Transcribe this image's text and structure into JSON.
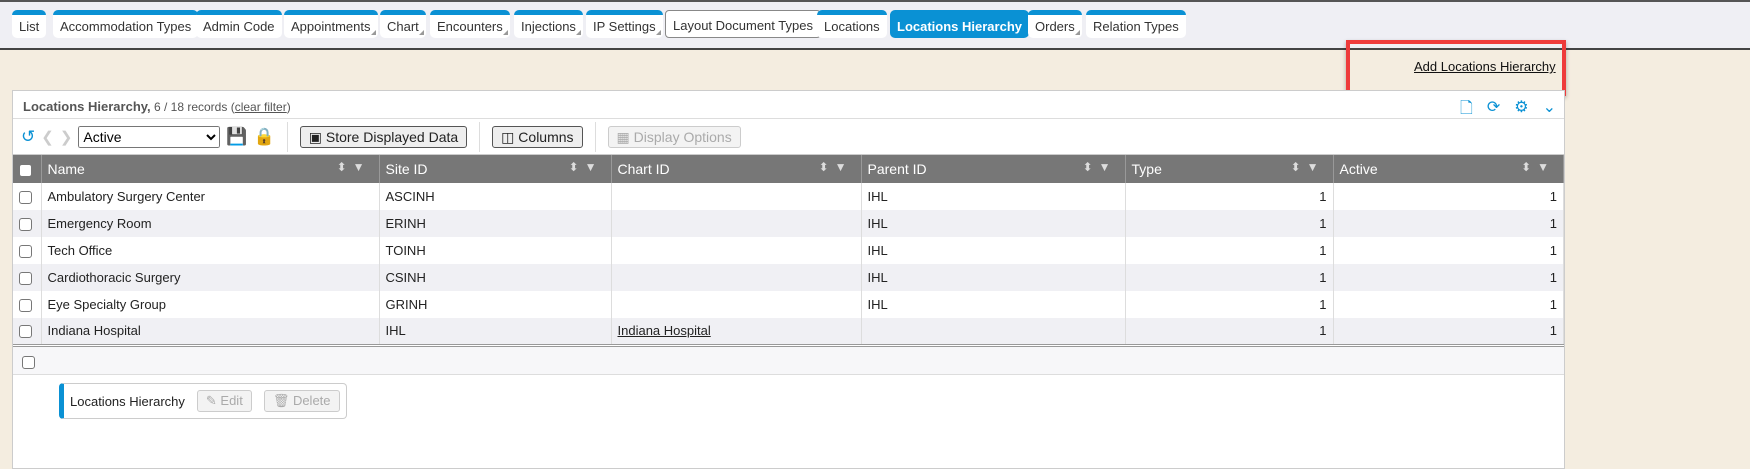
{
  "tabs": [
    {
      "label": "List",
      "left": 12,
      "sub": false
    },
    {
      "label": "Accommodation Types",
      "sub": false
    },
    {
      "label": "Admin Code",
      "sub": false
    },
    {
      "label": "Appointments",
      "sub": true
    },
    {
      "label": "Chart",
      "sub": true
    },
    {
      "label": "Encounters",
      "sub": true
    },
    {
      "label": "Injections",
      "sub": true
    },
    {
      "label": "IP Settings",
      "sub": true
    },
    {
      "label": "Layout Document Types",
      "style": "outlined"
    },
    {
      "label": "Locations",
      "sub": false
    },
    {
      "label": "Locations Hierarchy",
      "style": "active"
    },
    {
      "label": "Orders",
      "sub": true
    },
    {
      "label": "Relation Types",
      "sub": false
    }
  ],
  "add_link": "Add Locations Hierarchy",
  "panel": {
    "title": "Locations Hierarchy,",
    "records": "6 / 18 records",
    "clear_filter": "clear filter"
  },
  "toolbar": {
    "filter_value": "Active",
    "store_label": "Store Displayed Data",
    "columns_label": "Columns",
    "display_options_label": "Display Options"
  },
  "columns": [
    "Name",
    "Site ID",
    "Chart ID",
    "Parent ID",
    "Type",
    "Active"
  ],
  "rows": [
    [
      "Ambulatory Surgery Center",
      "ASCINH",
      "",
      "IHL",
      "1",
      "1"
    ],
    [
      "Emergency Room",
      "ERINH",
      "",
      "IHL",
      "1",
      "1"
    ],
    [
      "Tech Office",
      "TOINH",
      "",
      "IHL",
      "1",
      "1"
    ],
    [
      "Cardiothoracic Surgery",
      "CSINH",
      "",
      "IHL",
      "1",
      "1"
    ],
    [
      "Eye Specialty Group",
      "GRINH",
      "",
      "IHL",
      "1",
      "1"
    ],
    [
      "Indiana Hospital",
      "IHL",
      "Indiana Hospital",
      "",
      "1",
      "1"
    ]
  ],
  "actions": {
    "label": "Locations Hierarchy",
    "edit": "Edit",
    "delete": "Delete"
  },
  "colors": {
    "accent": "#0a91d4",
    "header": "#777777",
    "background": "#f4ede0",
    "highlight": "#ee3b3b"
  }
}
